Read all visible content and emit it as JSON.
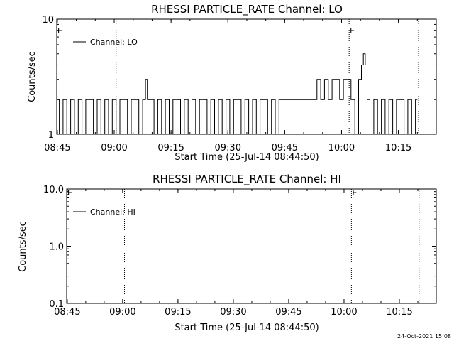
{
  "chart_data": [
    {
      "type": "line",
      "title": "RHESSI PARTICLE_RATE Channel: LO",
      "xlabel": "Start Time (25-Jul-14 08:44:50)",
      "ylabel": "Counts/sec",
      "y_scale": "log",
      "ylim": [
        1,
        10
      ],
      "y_ticks": [
        1,
        10
      ],
      "y_tick_labels": [
        "1",
        "10"
      ],
      "xlim": [
        "08:44:50",
        "10:25:00"
      ],
      "x_ticks": [
        "08:45",
        "09:00",
        "09:15",
        "09:30",
        "09:45",
        "10:00",
        "10:15"
      ],
      "legend": "Channel: LO",
      "legend_position": "top-left",
      "event_markers": [
        {
          "time": "08:44:50",
          "label": "E"
        },
        {
          "time": "10:02:00",
          "label": "E"
        }
      ],
      "dotted_lines": [
        "09:00:30",
        "10:02:00",
        "10:20:20"
      ],
      "series": [
        {
          "name": "Channel: LO",
          "t": [
            "08:45:00",
            "08:46:00",
            "08:47:00",
            "08:48:00",
            "08:49:00",
            "08:50:00",
            "08:51:00",
            "08:52:00",
            "08:53:00",
            "08:54:00",
            "08:55:00",
            "08:56:00",
            "08:57:00",
            "08:58:00",
            "08:59:00",
            "09:00:00",
            "09:01:00",
            "09:02:00",
            "09:03:00",
            "09:04:00",
            "09:05:00",
            "09:06:00",
            "09:07:00",
            "09:08:00",
            "09:08:30",
            "09:09:00",
            "09:09:30",
            "09:10:00",
            "09:11:00",
            "09:12:00",
            "09:13:00",
            "09:14:00",
            "09:15:00",
            "09:16:00",
            "09:17:00",
            "09:18:00",
            "09:19:00",
            "09:20:00",
            "09:21:00",
            "09:22:00",
            "09:23:00",
            "09:24:00",
            "09:25:00",
            "09:26:00",
            "09:27:00",
            "09:28:00",
            "09:29:00",
            "09:30:00",
            "09:31:00",
            "09:32:00",
            "09:33:00",
            "09:34:00",
            "09:35:00",
            "09:36:00",
            "09:37:00",
            "09:38:00",
            "09:39:00",
            "09:40:00",
            "09:41:00",
            "09:42:00",
            "09:43:00",
            "09:44:00",
            "09:45:00",
            "09:46:00",
            "09:47:00",
            "09:48:00",
            "09:49:00",
            "09:50:00",
            "09:51:00",
            "09:52:00",
            "09:53:00",
            "09:54:00",
            "09:55:00",
            "09:56:00",
            "09:57:00",
            "09:58:00",
            "09:59:00",
            "10:00:00",
            "10:01:00",
            "10:02:00",
            "10:03:00",
            "10:04:00",
            "10:05:00",
            "10:05:30",
            "10:06:00",
            "10:06:30",
            "10:07:00",
            "10:08:00",
            "10:09:00",
            "10:10:00",
            "10:11:00",
            "10:12:00",
            "10:13:00",
            "10:14:00",
            "10:15:00",
            "10:16:00",
            "10:17:00",
            "10:18:00",
            "10:19:00",
            "10:20:00"
          ],
          "values": [
            2,
            1,
            2,
            1,
            2,
            1,
            2,
            1,
            2,
            2,
            1,
            2,
            1,
            2,
            1,
            2,
            1,
            2,
            2,
            1,
            2,
            2,
            1,
            2,
            3,
            2,
            2,
            2,
            1,
            2,
            1,
            2,
            1,
            2,
            2,
            1,
            2,
            1,
            2,
            1,
            2,
            2,
            1,
            2,
            1,
            2,
            1,
            2,
            1,
            2,
            2,
            1,
            2,
            1,
            2,
            1,
            2,
            2,
            1,
            2,
            1,
            2,
            2,
            2,
            2,
            2,
            2,
            2,
            2,
            2,
            2,
            3,
            2,
            3,
            2,
            3,
            3,
            2,
            3,
            3,
            2,
            1,
            3,
            4,
            5,
            4,
            2,
            1,
            2,
            1,
            2,
            1,
            2,
            1,
            2,
            2,
            1,
            2,
            1,
            2
          ]
        }
      ]
    },
    {
      "type": "line",
      "title": "RHESSI PARTICLE_RATE Channel: HI",
      "xlabel": "Start Time (25-Jul-14 08:44:50)",
      "ylabel": "Counts/sec",
      "y_scale": "log",
      "ylim": [
        0.1,
        10
      ],
      "y_ticks": [
        0.1,
        1,
        10
      ],
      "y_tick_labels": [
        "0.1",
        "1.0",
        "10.0"
      ],
      "xlim": [
        "08:44:50",
        "10:25:00"
      ],
      "x_ticks": [
        "08:45",
        "09:00",
        "09:15",
        "09:30",
        "09:45",
        "10:00",
        "10:15"
      ],
      "legend": "Channel: HI",
      "legend_position": "top-left",
      "event_markers": [
        {
          "time": "08:44:50",
          "label": "E"
        },
        {
          "time": "10:02:00",
          "label": "E"
        }
      ],
      "dotted_lines": [
        "09:00:30",
        "10:02:00",
        "10:20:20"
      ],
      "series": [
        {
          "name": "Channel: HI",
          "t": [],
          "values": []
        }
      ]
    }
  ],
  "footer": {
    "timestamp": "24-Oct-2021 15:08"
  }
}
